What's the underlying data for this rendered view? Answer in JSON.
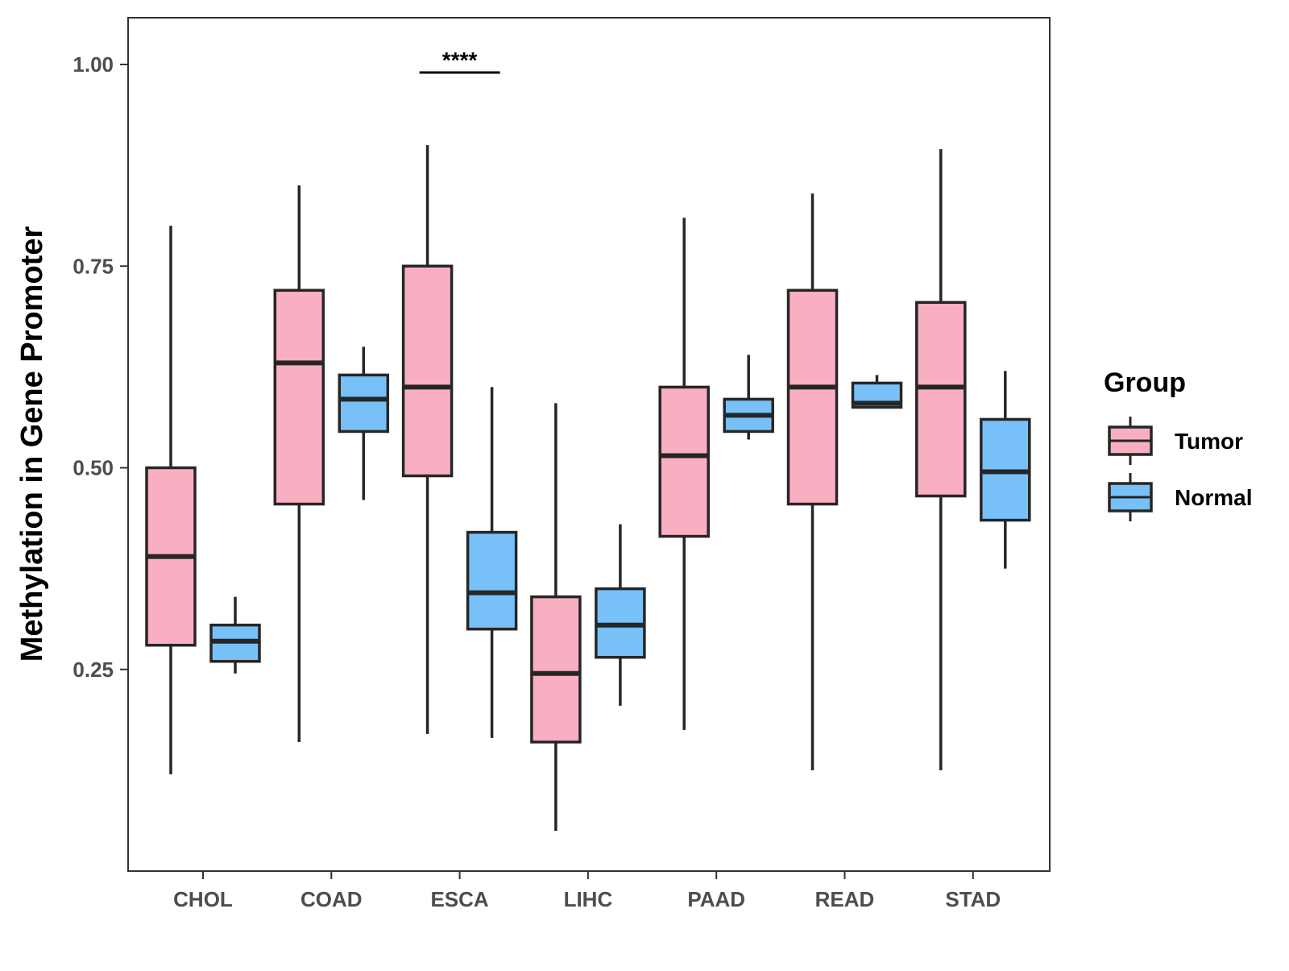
{
  "chart_data": {
    "type": "boxplot",
    "title": "",
    "xlabel": "",
    "ylabel": "Methylation in Gene Promoter",
    "ylim": [
      0.0,
      1.06
    ],
    "yticks": [
      0.25,
      0.5,
      0.75,
      1.0
    ],
    "ytick_labels": [
      "0.25",
      "0.50",
      "0.75",
      "1.00"
    ],
    "grid": false,
    "categories": [
      "CHOL",
      "COAD",
      "ESCA",
      "LIHC",
      "PAAD",
      "READ",
      "STAD"
    ],
    "legend": {
      "title": "Group",
      "position": "right",
      "entries": [
        {
          "name": "Tumor",
          "color": "#F9AFC2"
        },
        {
          "name": "Normal",
          "color": "#77C1F8"
        }
      ]
    },
    "series": [
      {
        "name": "Tumor",
        "color": "#F9AFC2",
        "boxes": [
          {
            "category": "CHOL",
            "whisker_low": 0.12,
            "q1": 0.28,
            "median": 0.39,
            "q3": 0.5,
            "whisker_high": 0.8
          },
          {
            "category": "COAD",
            "whisker_low": 0.16,
            "q1": 0.455,
            "median": 0.63,
            "q3": 0.72,
            "whisker_high": 0.85
          },
          {
            "category": "ESCA",
            "whisker_low": 0.17,
            "q1": 0.49,
            "median": 0.6,
            "q3": 0.75,
            "whisker_high": 0.9
          },
          {
            "category": "LIHC",
            "whisker_low": 0.05,
            "q1": 0.16,
            "median": 0.245,
            "q3": 0.34,
            "whisker_high": 0.58
          },
          {
            "category": "PAAD",
            "whisker_low": 0.175,
            "q1": 0.415,
            "median": 0.515,
            "q3": 0.6,
            "whisker_high": 0.81
          },
          {
            "category": "READ",
            "whisker_low": 0.125,
            "q1": 0.455,
            "median": 0.6,
            "q3": 0.72,
            "whisker_high": 0.84
          },
          {
            "category": "STAD",
            "whisker_low": 0.125,
            "q1": 0.465,
            "median": 0.6,
            "q3": 0.705,
            "whisker_high": 0.895
          }
        ]
      },
      {
        "name": "Normal",
        "color": "#77C1F8",
        "boxes": [
          {
            "category": "CHOL",
            "whisker_low": 0.245,
            "q1": 0.26,
            "median": 0.285,
            "q3": 0.305,
            "whisker_high": 0.34
          },
          {
            "category": "COAD",
            "whisker_low": 0.46,
            "q1": 0.545,
            "median": 0.585,
            "q3": 0.615,
            "whisker_high": 0.65
          },
          {
            "category": "ESCA",
            "whisker_low": 0.165,
            "q1": 0.3,
            "median": 0.345,
            "q3": 0.42,
            "whisker_high": 0.6
          },
          {
            "category": "LIHC",
            "whisker_low": 0.205,
            "q1": 0.265,
            "median": 0.305,
            "q3": 0.35,
            "whisker_high": 0.43
          },
          {
            "category": "PAAD",
            "whisker_low": 0.535,
            "q1": 0.545,
            "median": 0.565,
            "q3": 0.585,
            "whisker_high": 0.64
          },
          {
            "category": "READ",
            "whisker_low": 0.575,
            "q1": 0.575,
            "median": 0.58,
            "q3": 0.605,
            "whisker_high": 0.615
          },
          {
            "category": "STAD",
            "whisker_low": 0.375,
            "q1": 0.435,
            "median": 0.495,
            "q3": 0.56,
            "whisker_high": 0.62
          }
        ]
      }
    ],
    "annotations": [
      {
        "category": "ESCA",
        "text": "****",
        "y": 0.99
      }
    ]
  }
}
